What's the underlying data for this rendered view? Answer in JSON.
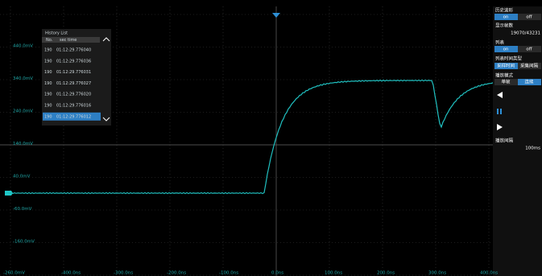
{
  "y_axis_labels": [
    "440.0mV",
    "340.0mV",
    "240.0mV",
    "140.0mV",
    "40.0mV",
    "-60.0mV",
    "-160.0mV"
  ],
  "x_axis_labels": [
    "-260.0mV",
    "-400.0ns",
    "-300.0ns",
    "-200.0ns",
    "-100.0ns",
    "0.0ns",
    "100.0ns",
    "200.0ns",
    "300.0ns",
    "400.0ns"
  ],
  "history_list": {
    "title": "History List",
    "header": [
      "No.",
      "sec time"
    ],
    "rows": [
      [
        "190",
        "01:12:29.776040"
      ],
      [
        "190",
        "01:12:29.776036"
      ],
      [
        "190",
        "01:12:29.776031"
      ],
      [
        "190",
        "01:12:29.776027"
      ],
      [
        "190",
        "01:12:29.776020"
      ],
      [
        "190",
        "01:12:29.776016"
      ],
      [
        "190",
        "01:12:29.776012"
      ]
    ]
  },
  "panel": {
    "history_title": "历史波形",
    "history_on": "on",
    "history_off": "off",
    "frames_label": "显示帧数",
    "frames_value": "19070/43231",
    "list_label": "列表",
    "list_on": "on",
    "list_off": "off",
    "time_type_label": "列表时间类型",
    "time_type_a": "采样时间",
    "time_type_b": "采集间隔",
    "play_mode_label": "播放模式",
    "play_mode_a": "单帧",
    "play_mode_b": "连续",
    "play_interval_label": "播放间隔",
    "play_interval_value": "100ms"
  }
}
